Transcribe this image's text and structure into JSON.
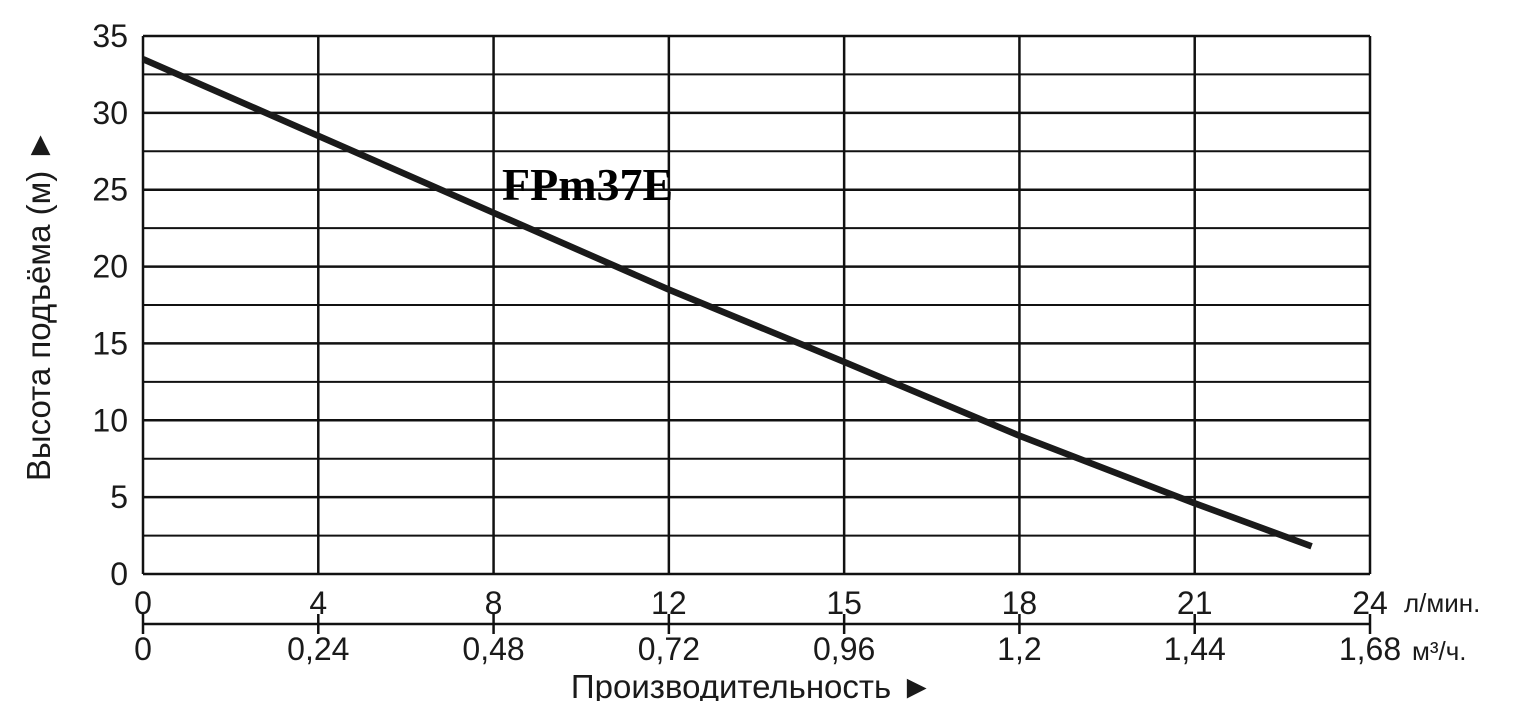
{
  "chart_data": {
    "type": "line",
    "xlabel": "Производительность ►",
    "ylabel": "Высота подъёма (м) ►",
    "ylim": [
      0,
      35
    ],
    "y_major_ticks": [
      "0",
      "5",
      "10",
      "15",
      "20",
      "25",
      "30",
      "35"
    ],
    "y_minor_step": 2.5,
    "x_primary_axis": {
      "unit": "л/мин.",
      "tick_labels": [
        "0",
        "4",
        "8",
        "12",
        "15",
        "18",
        "21",
        "24"
      ]
    },
    "x_secondary_axis": {
      "unit": "м³/ч.",
      "tick_labels": [
        "0",
        "0,24",
        "0,48",
        "0,72",
        "0,96",
        "1,2",
        "1,44",
        "1,68"
      ],
      "values": [
        0,
        0.24,
        0.48,
        0.72,
        0.96,
        1.2,
        1.44,
        1.68
      ],
      "xlim": [
        0,
        1.68
      ]
    },
    "grid": true,
    "series": [
      {
        "name": "FPm37E",
        "x_m3h": [
          0,
          0.24,
          0.48,
          0.72,
          0.96,
          1.2,
          1.44,
          1.6
        ],
        "head_m": [
          33.5,
          28.5,
          23.5,
          18.5,
          13.8,
          9.0,
          4.6,
          1.8
        ]
      }
    ],
    "colors": {
      "line": "#1a1a1a",
      "grid": "#111111",
      "text": "#1a1a1a"
    }
  }
}
